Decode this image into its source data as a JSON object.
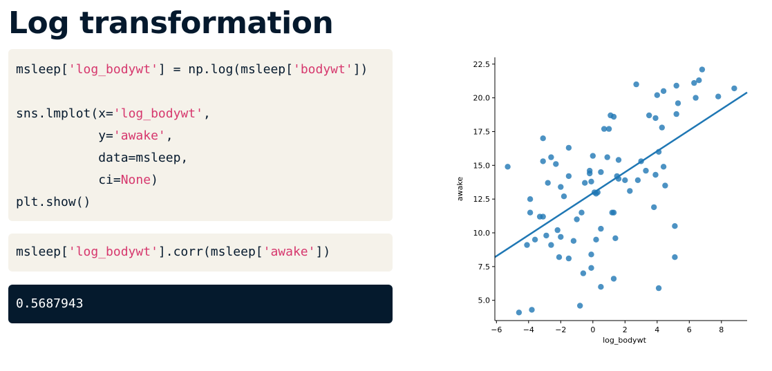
{
  "title": "Log transformation",
  "code_blocks": {
    "lmplot": {
      "line1": {
        "pre": "msleep[",
        "s1": "'log_bodywt'",
        "mid": "] = np.log(msleep[",
        "s2": "'bodywt'",
        "post": "])"
      },
      "line2": {
        "pre": "sns.lmplot(x=",
        "s1": "'log_bodywt'",
        "post": ","
      },
      "line3": {
        "pre": "           y=",
        "s1": "'awake'",
        "post": ","
      },
      "line4": {
        "text": "           data=msleep,"
      },
      "line5": {
        "pre": "           ci=",
        "s1": "None",
        "post": ")"
      },
      "line6": {
        "text": "plt.show()"
      }
    },
    "corr": {
      "line1": {
        "pre": "msleep[",
        "s1": "'log_bodywt'",
        "mid": "].corr(msleep[",
        "s2": "'awake'",
        "post": "])"
      }
    }
  },
  "output": {
    "value": "0.5687943"
  },
  "chart_data": {
    "type": "scatter",
    "xlabel": "log_bodywt",
    "ylabel": "awake",
    "xlim": [
      -6.1,
      9.6
    ],
    "ylim": [
      3.5,
      23.0
    ],
    "xticks": [
      -6,
      -4,
      -2,
      0,
      2,
      4,
      6,
      8
    ],
    "xtick_labels": [
      "−6",
      "−4",
      "−2",
      "0",
      "2",
      "4",
      "6",
      "8"
    ],
    "yticks": [
      5.0,
      7.5,
      10.0,
      12.5,
      15.0,
      17.5,
      20.0,
      22.5
    ],
    "ytick_labels": [
      "5.0",
      "7.5",
      "10.0",
      "12.5",
      "15.0",
      "17.5",
      "20.0",
      "22.5"
    ],
    "grid": false,
    "point_color": "#1f77b4",
    "line_color": "#1f77b4",
    "regression": {
      "x": [
        -6.1,
        9.6
      ],
      "y": [
        8.2,
        20.4
      ]
    },
    "points": [
      [
        -5.3,
        14.9
      ],
      [
        -4.6,
        4.1
      ],
      [
        -4.1,
        9.1
      ],
      [
        -3.9,
        12.5
      ],
      [
        -3.9,
        11.5
      ],
      [
        -3.8,
        4.3
      ],
      [
        -3.6,
        9.5
      ],
      [
        -3.3,
        11.2
      ],
      [
        -3.1,
        11.2
      ],
      [
        -3.1,
        15.3
      ],
      [
        -3.1,
        17.0
      ],
      [
        -2.9,
        9.8
      ],
      [
        -2.8,
        13.7
      ],
      [
        -2.6,
        15.6
      ],
      [
        -2.6,
        9.1
      ],
      [
        -2.3,
        15.1
      ],
      [
        -2.2,
        10.2
      ],
      [
        -2.1,
        8.2
      ],
      [
        -2.0,
        13.4
      ],
      [
        -2.0,
        9.7
      ],
      [
        -1.8,
        12.7
      ],
      [
        -1.5,
        16.3
      ],
      [
        -1.5,
        8.1
      ],
      [
        -1.5,
        14.2
      ],
      [
        -1.2,
        9.4
      ],
      [
        -1.0,
        11.0
      ],
      [
        -0.8,
        4.6
      ],
      [
        -0.7,
        11.5
      ],
      [
        -0.6,
        7.0
      ],
      [
        -0.5,
        13.7
      ],
      [
        -0.2,
        14.6
      ],
      [
        -0.2,
        14.4
      ],
      [
        -0.1,
        13.8
      ],
      [
        -0.1,
        8.4
      ],
      [
        -0.1,
        7.4
      ],
      [
        0.0,
        15.7
      ],
      [
        0.1,
        13.0
      ],
      [
        0.2,
        12.9
      ],
      [
        0.2,
        9.5
      ],
      [
        0.3,
        13.0
      ],
      [
        0.5,
        10.3
      ],
      [
        0.5,
        14.5
      ],
      [
        0.5,
        6.0
      ],
      [
        0.7,
        17.7
      ],
      [
        0.9,
        15.6
      ],
      [
        1.0,
        17.7
      ],
      [
        1.1,
        18.7
      ],
      [
        1.2,
        11.5
      ],
      [
        1.3,
        11.5
      ],
      [
        1.3,
        18.6
      ],
      [
        1.4,
        9.6
      ],
      [
        1.5,
        14.2
      ],
      [
        1.6,
        15.4
      ],
      [
        1.6,
        14.0
      ],
      [
        1.3,
        6.6
      ],
      [
        2.0,
        13.9
      ],
      [
        2.3,
        13.1
      ],
      [
        2.7,
        21.0
      ],
      [
        2.8,
        13.9
      ],
      [
        3.0,
        15.3
      ],
      [
        3.3,
        14.6
      ],
      [
        3.5,
        18.7
      ],
      [
        3.8,
        11.9
      ],
      [
        3.9,
        14.3
      ],
      [
        3.9,
        18.5
      ],
      [
        4.0,
        20.2
      ],
      [
        4.1,
        16.0
      ],
      [
        4.1,
        5.9
      ],
      [
        4.3,
        17.8
      ],
      [
        4.4,
        20.5
      ],
      [
        4.4,
        14.9
      ],
      [
        4.5,
        13.5
      ],
      [
        5.1,
        10.5
      ],
      [
        5.1,
        8.2
      ],
      [
        5.2,
        18.8
      ],
      [
        5.2,
        20.9
      ],
      [
        5.3,
        19.6
      ],
      [
        6.3,
        21.1
      ],
      [
        6.4,
        20.0
      ],
      [
        6.6,
        21.3
      ],
      [
        6.8,
        22.1
      ],
      [
        7.8,
        20.1
      ],
      [
        8.8,
        20.7
      ]
    ]
  }
}
